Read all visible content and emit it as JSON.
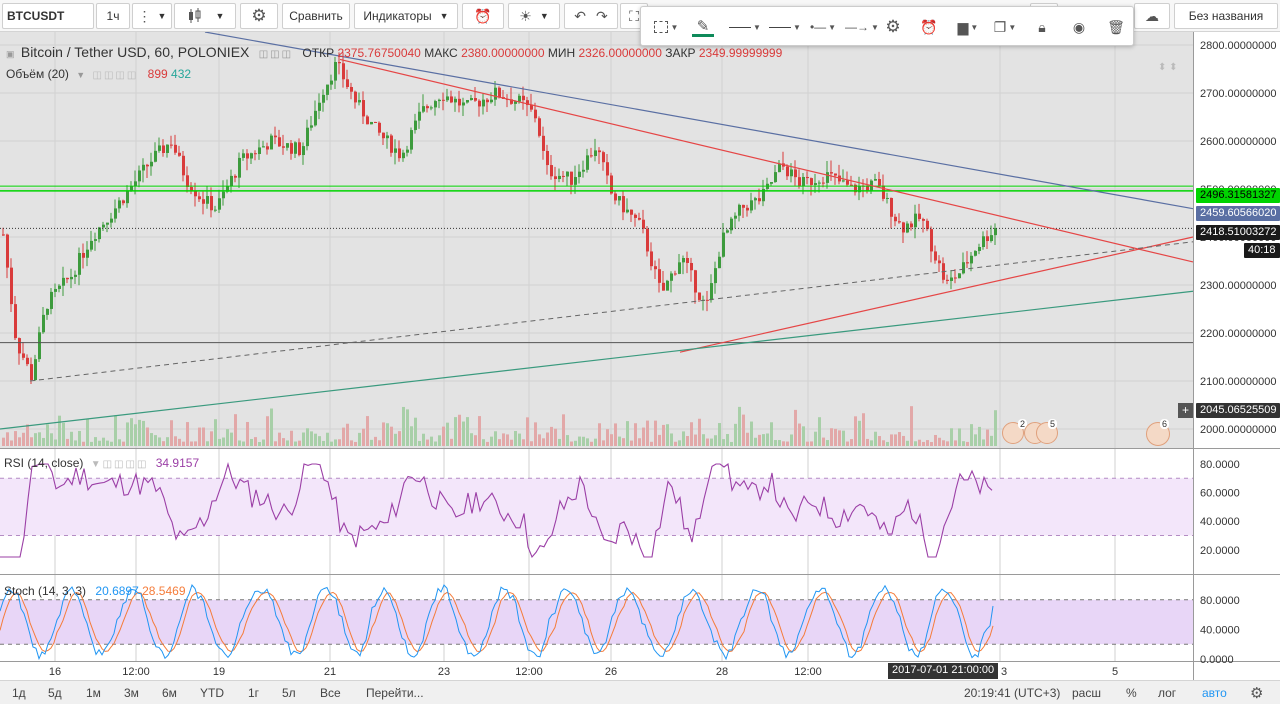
{
  "toolbar": {
    "symbol": "BTCUSDT",
    "interval": "1ч",
    "compare_label": "Сравнить",
    "indicators_label": "Индикаторы",
    "layout_name": "Без названия"
  },
  "main_legend": {
    "title": "Bitcoin / Tether USD, 60, POLONIEX",
    "open_label": "ОТКР",
    "open_value": "2375.76750040",
    "high_label": "МАКС",
    "high_value": "2380.00000000",
    "low_label": "МИН",
    "low_value": "2326.00000000",
    "close_label": "ЗАКР",
    "close_value": "2349.99999999",
    "volume_label": "Объём (20)",
    "volume_value_1": "899",
    "volume_value_2": "432"
  },
  "rsi_legend": {
    "title": "RSI (14, close)",
    "value": "34.9157"
  },
  "stoch_legend": {
    "title": "Stoch (14, 3, 3)",
    "value_k": "20.6897",
    "value_d": "28.5469"
  },
  "price_axis": {
    "ticks": [
      "2800.00000000",
      "2700.00000000",
      "2600.00000000",
      "2500.00000000",
      "2400.00000000",
      "2300.00000000",
      "2200.00000000",
      "2100.00000000",
      "2000.00000000"
    ],
    "tag_green": "2496.31581327",
    "tag_blue": "2459.60566020",
    "tag_current": "2418.51003272",
    "tag_countdown": "40:18",
    "tag_cursor": "2045.06525509"
  },
  "rsi_axis": {
    "ticks": [
      "80.0000",
      "60.0000",
      "40.0000",
      "20.0000"
    ]
  },
  "stoch_axis": {
    "ticks": [
      "80.0000",
      "40.0000",
      "0.0000"
    ]
  },
  "time_axis": {
    "labels": [
      "16",
      "12:00",
      "19",
      "21",
      "23",
      "12:00",
      "26",
      "28",
      "12:00",
      "3",
      "5"
    ],
    "cursor_label": "2017-07-01 21:00:00"
  },
  "event_badges": {
    "badge_a": "2",
    "badge_b": "5",
    "badge_c": "6"
  },
  "bottom": {
    "ranges": [
      "1д",
      "5д",
      "1м",
      "3м",
      "6м",
      "YTD",
      "1г",
      "5л",
      "Все"
    ],
    "goto_label": "Перейти...",
    "clock": "20:19:41 (UTC+3)",
    "ext_label": "расш",
    "percent_label": "%",
    "log_label": "лог",
    "auto_label": "авто"
  },
  "colors": {
    "bull": "#3d9b3d",
    "bear": "#d93b3b",
    "trend_red": "#e54646",
    "trend_blue": "#5a6fa3",
    "trend_teal": "#3a9a7e",
    "level_green": "#00d400",
    "rsi": "#9b3fa6",
    "stoch_k": "#2196f3",
    "stoch_d": "#f57c3a",
    "accent": "#2196f3"
  }
}
